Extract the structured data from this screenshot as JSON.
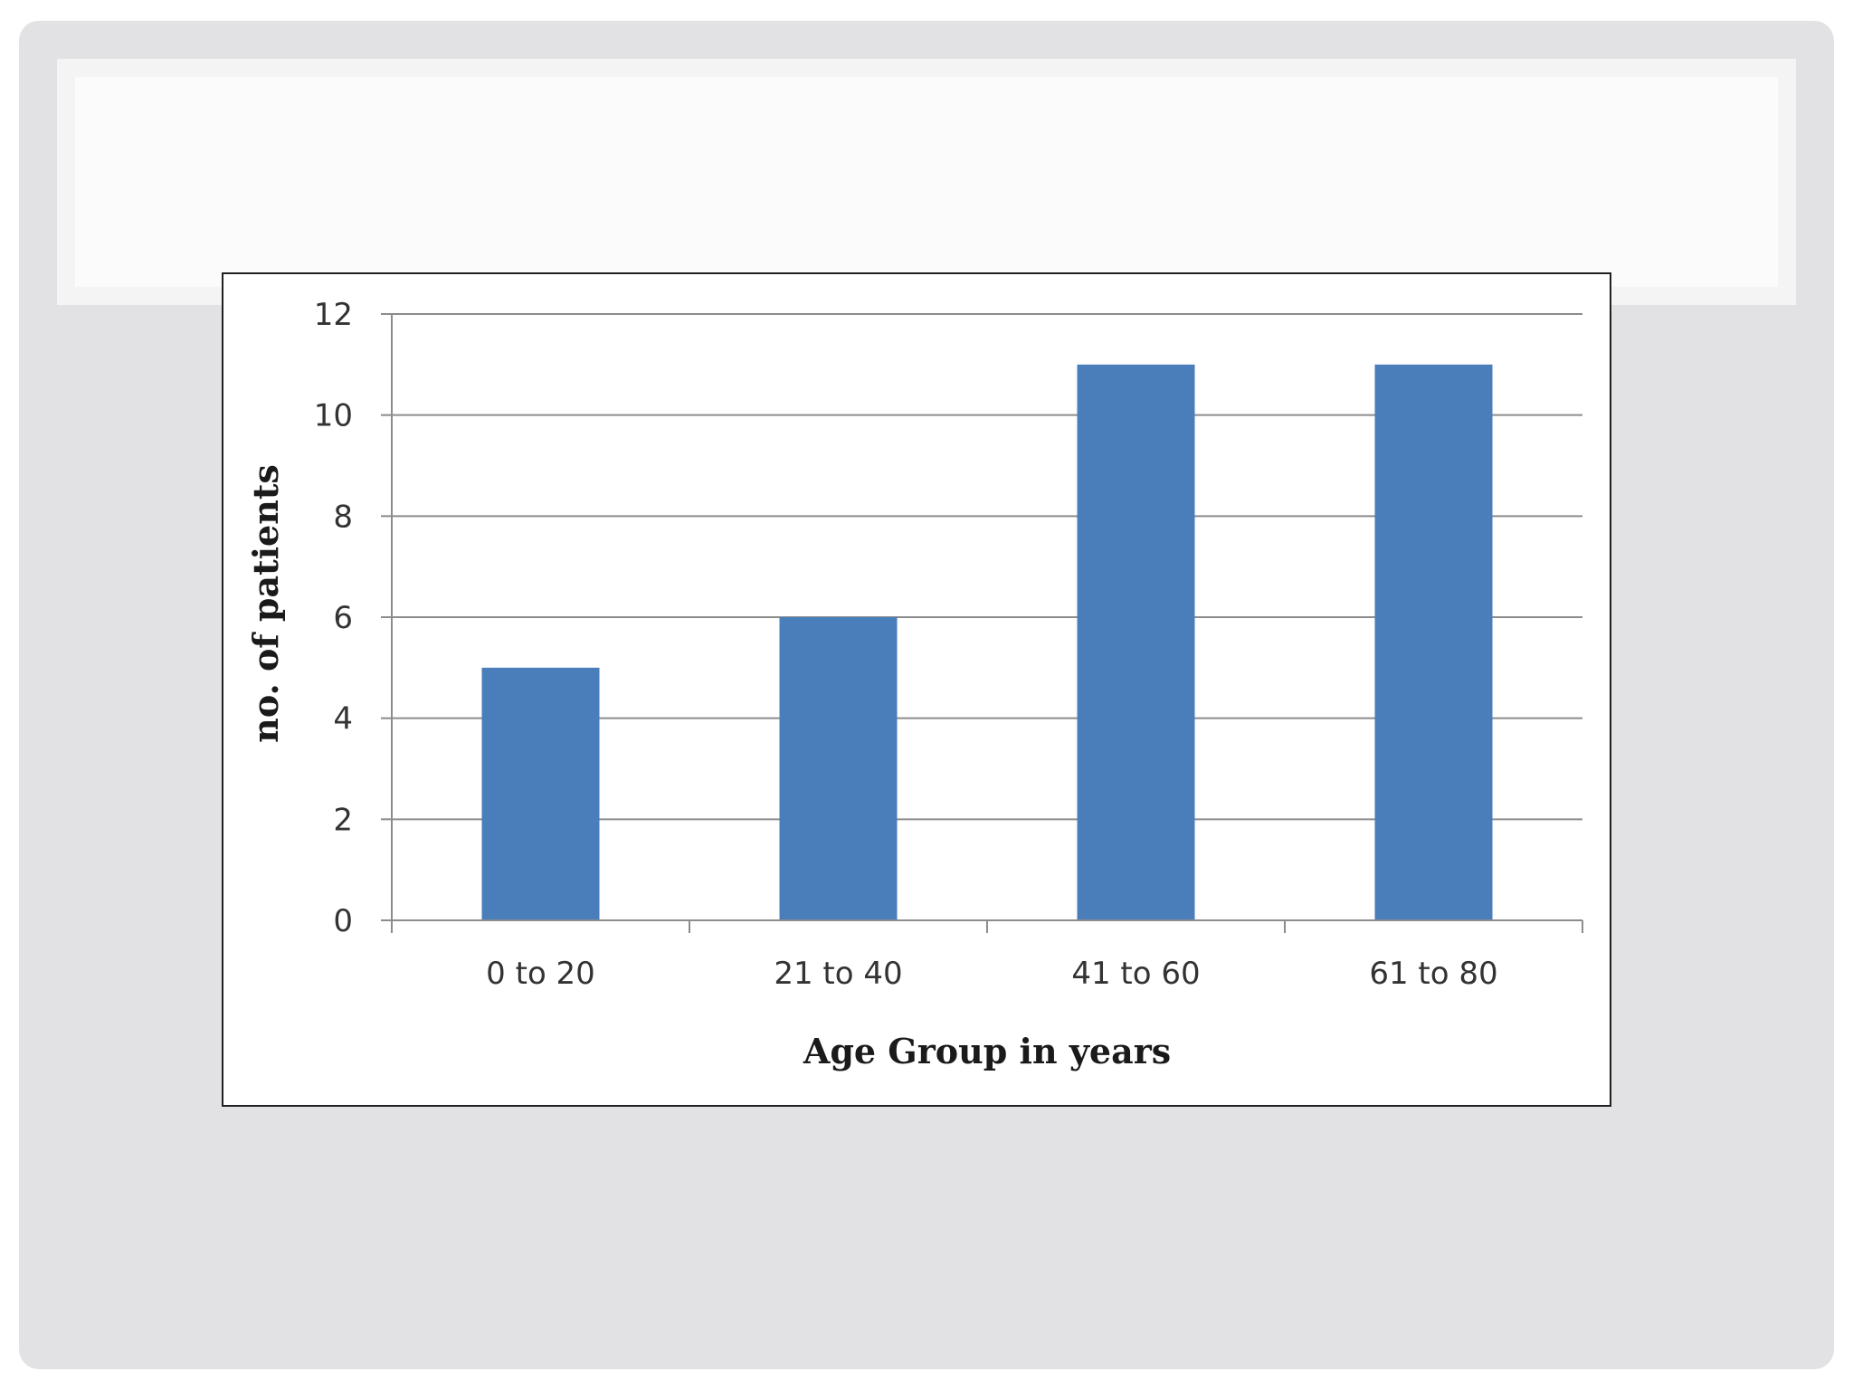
{
  "chart_data": {
    "type": "bar",
    "title": "",
    "categories": [
      "0 to 20",
      "21 to 40",
      "41 to 60",
      "61 to 80"
    ],
    "values": [
      5,
      6,
      11,
      11
    ],
    "xlabel": "Age Group in years",
    "ylabel": "no. of patients",
    "ylim": [
      0,
      12
    ],
    "yticks": [
      "0",
      "2",
      "4",
      "6",
      "8",
      "10",
      "12"
    ],
    "grid": true,
    "legend": "none",
    "bar_color": "#4a7ebb",
    "grid_color": "#8c8c8c"
  }
}
